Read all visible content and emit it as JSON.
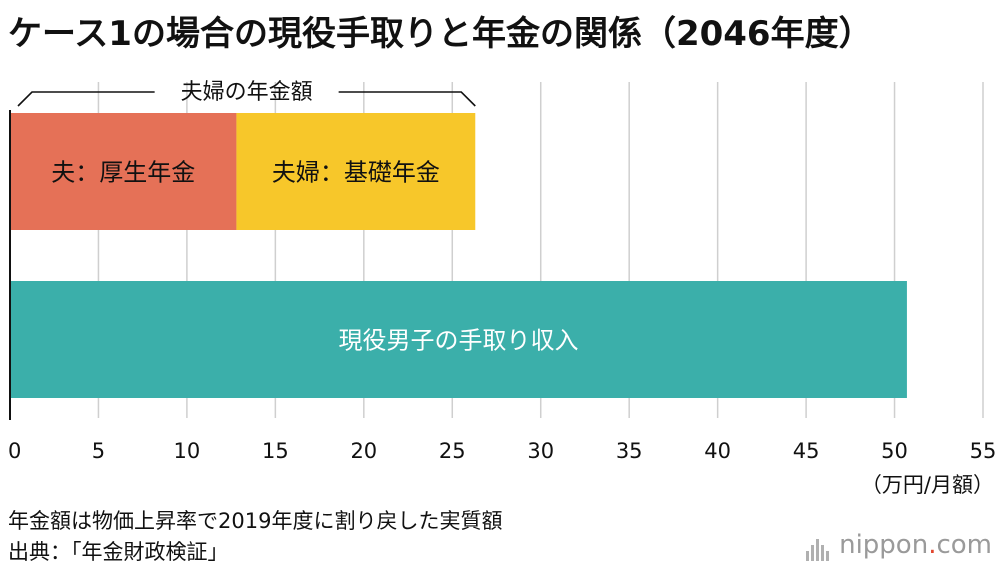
{
  "title": "ケース1の場合の現役手取りと年金の関係（2046年度）",
  "chart_data": {
    "type": "bar",
    "orientation": "horizontal-stacked",
    "title": "ケース1の場合の現役手取りと年金の関係（2046年度）",
    "unit_label": "（万円/月額）",
    "xlim": [
      0,
      55
    ],
    "x_ticks": [
      0,
      5,
      10,
      15,
      20,
      25,
      30,
      35,
      40,
      45,
      50,
      55
    ],
    "grid": true,
    "bars": [
      {
        "segments": [
          {
            "label": "夫：厚生年金",
            "value": 12.8,
            "color": "#e57157"
          },
          {
            "label": "夫婦：基礎年金",
            "value": 13.5,
            "color": "#f7c72a"
          }
        ],
        "bracket_label": "夫婦の年金額"
      },
      {
        "segments": [
          {
            "label": "現役男子の手取り収入",
            "value": 50.7,
            "color": "#3bafaa"
          }
        ]
      }
    ]
  },
  "notes": {
    "line1": "年金額は物価上昇率で2019年度に割り戻した実質額",
    "line2": "出典：「年金財政検証」"
  },
  "logo": {
    "name_main": "nippon",
    "name_dot": ".",
    "name_tld": "com"
  }
}
